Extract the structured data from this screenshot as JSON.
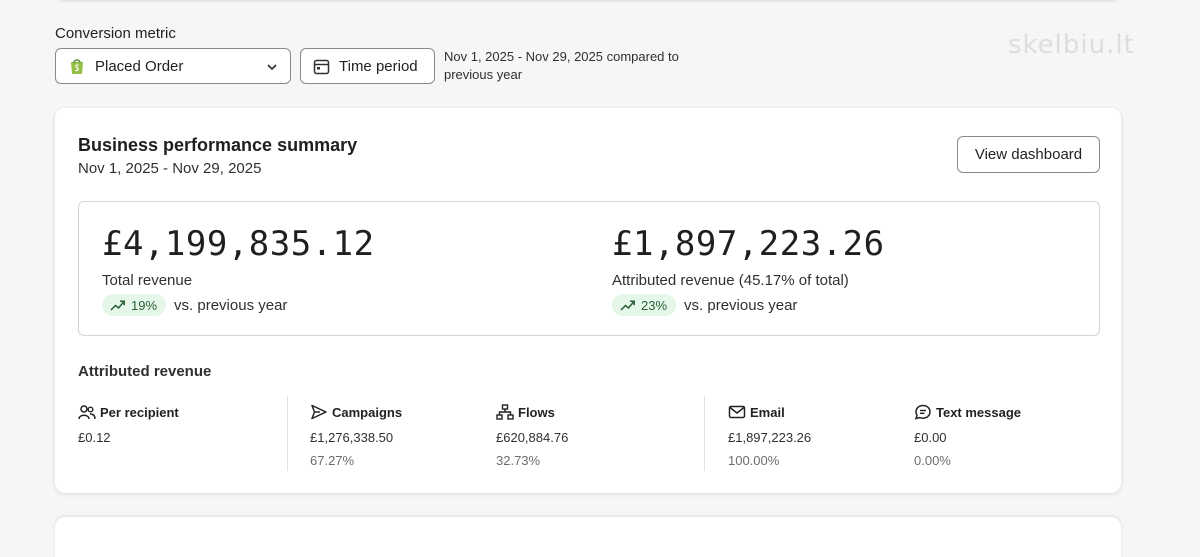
{
  "watermark": "skelbiu.lt",
  "filters": {
    "conversion_label": "Conversion metric",
    "metric_selected": "Placed Order",
    "time_period_label": "Time period",
    "period_description": "Nov 1, 2025 - Nov 29, 2025 compared to previous year"
  },
  "summary": {
    "title": "Business performance summary",
    "date_range": "Nov 1, 2025 - Nov 29, 2025",
    "view_button": "View dashboard",
    "total": {
      "value": "£4,199,835.12",
      "label": "Total revenue",
      "delta": "19%",
      "delta_text": "vs. previous year"
    },
    "attributed": {
      "value": "£1,897,223.26",
      "label": "Attributed revenue (45.17% of total)",
      "delta": "23%",
      "delta_text": "vs. previous year"
    }
  },
  "attributed_revenue": {
    "title": "Attributed revenue",
    "per_recipient": {
      "label": "Per recipient",
      "value": "£0.12"
    },
    "campaigns": {
      "label": "Campaigns",
      "value": "£1,276,338.50",
      "pct": "67.27%"
    },
    "flows": {
      "label": "Flows",
      "value": "£620,884.76",
      "pct": "32.73%"
    },
    "email": {
      "label": "Email",
      "value": "£1,897,223.26",
      "pct": "100.00%"
    },
    "text_message": {
      "label": "Text message",
      "value": "£0.00",
      "pct": "0.00%"
    }
  },
  "colors": {
    "positive_badge_bg": "#e4f7e8",
    "positive_badge_text": "#2a5f37",
    "shopify_green": "#95bf47"
  }
}
